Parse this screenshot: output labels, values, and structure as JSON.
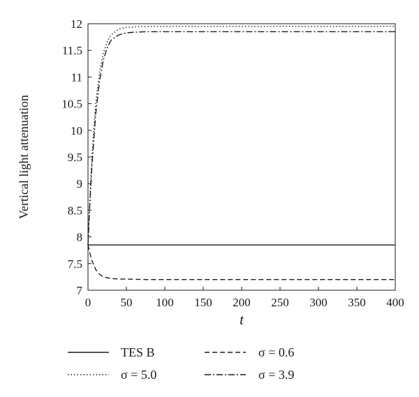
{
  "chart_data": {
    "type": "line",
    "title": "",
    "xlabel": "t",
    "ylabel": "Vertical light attenuation",
    "xlim": [
      0,
      400
    ],
    "ylim": [
      7,
      12
    ],
    "xticks": [
      0,
      50,
      100,
      150,
      200,
      250,
      300,
      350,
      400
    ],
    "yticks": [
      7,
      7.5,
      8,
      8.5,
      9,
      9.5,
      10,
      10.5,
      11,
      11.5,
      12
    ],
    "ytick_labels": [
      "7",
      "7.5",
      "8",
      "8.5",
      "9",
      "9.5",
      "10",
      "10.5",
      "11",
      "11.5",
      "12"
    ],
    "grid": false,
    "legend_position": "bottom",
    "series": [
      {
        "name": "TES B",
        "style": "solid",
        "x": [
          0,
          50,
          100,
          150,
          200,
          250,
          300,
          350,
          400
        ],
        "values": [
          7.85,
          7.85,
          7.85,
          7.85,
          7.85,
          7.85,
          7.85,
          7.85,
          7.85
        ]
      },
      {
        "name": "σ = 0.6",
        "style": "dashed",
        "x": [
          0,
          2,
          5,
          10,
          15,
          20,
          30,
          40,
          50,
          75,
          100,
          150,
          200,
          250,
          300,
          350,
          400
        ],
        "values": [
          7.85,
          7.72,
          7.56,
          7.39,
          7.3,
          7.25,
          7.22,
          7.21,
          7.21,
          7.2,
          7.2,
          7.2,
          7.2,
          7.2,
          7.2,
          7.2,
          7.2
        ]
      },
      {
        "name": "σ = 5.0",
        "style": "dotted",
        "x": [
          0,
          2,
          5,
          10,
          15,
          20,
          25,
          30,
          40,
          50,
          60,
          75,
          100,
          150,
          200,
          250,
          300,
          350,
          400
        ],
        "values": [
          7.85,
          8.58,
          9.5,
          10.5,
          11.08,
          11.45,
          11.66,
          11.79,
          11.9,
          11.93,
          11.94,
          11.95,
          11.95,
          11.95,
          11.95,
          11.95,
          11.95,
          11.95,
          11.95
        ]
      },
      {
        "name": "σ = 3.9",
        "style": "dashdot",
        "x": [
          0,
          2,
          5,
          10,
          15,
          20,
          25,
          30,
          40,
          50,
          60,
          75,
          100,
          150,
          200,
          250,
          300,
          350,
          400
        ],
        "values": [
          7.85,
          8.5,
          9.3,
          10.3,
          10.92,
          11.32,
          11.55,
          11.69,
          11.79,
          11.83,
          11.84,
          11.85,
          11.85,
          11.85,
          11.85,
          11.85,
          11.85,
          11.85,
          11.85
        ]
      }
    ]
  },
  "legend": {
    "entries": [
      "TES B",
      "σ = 0.6",
      "σ = 5.0",
      "σ = 3.9"
    ]
  }
}
